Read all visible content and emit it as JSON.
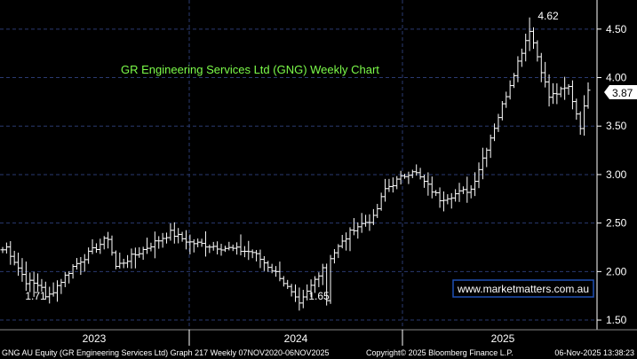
{
  "colors": {
    "background": "#000000",
    "title": "#7CFC4A",
    "grid": "#2a3a70",
    "bar": "#ffffff",
    "last_price_box": "#ffffff",
    "watermark_border": "#1e4fb4"
  },
  "chart_data": {
    "type": "ohlc",
    "title": "GR Engineering Services Ltd (GNG) Weekly Chart",
    "ylim": [
      1.4,
      4.8
    ],
    "y_ticks": [
      "1.50",
      "2.00",
      "2.50",
      "3.00",
      "3.50",
      "4.00",
      "4.50"
    ],
    "x_ticks": [
      "2023",
      "2024",
      "2025"
    ],
    "grid": true,
    "last_price": "3.87",
    "annotations": [
      {
        "text": "4.62",
        "value": 4.62
      },
      {
        "text": "1.71",
        "value": 1.71
      },
      {
        "text": "1.65",
        "value": 1.65
      }
    ],
    "series": [
      {
        "segments": [
          {
            "points": 2,
            "start": 2.2,
            "end": 2.25
          },
          {
            "points": 5,
            "start": 2.25,
            "end": 1.9
          },
          {
            "points": 4,
            "start": 1.9,
            "end": 1.85
          },
          {
            "points": 1,
            "start": 1.85,
            "end": 1.71
          },
          {
            "points": 7,
            "start": 1.71,
            "end": 2.05
          },
          {
            "points": 9,
            "start": 2.05,
            "end": 2.35
          },
          {
            "points": 2,
            "start": 2.35,
            "end": 2.05
          },
          {
            "points": 14,
            "start": 2.05,
            "end": 2.4
          },
          {
            "points": 5,
            "start": 2.4,
            "end": 2.3
          },
          {
            "points": 16,
            "start": 2.3,
            "end": 2.2
          },
          {
            "points": 7,
            "start": 2.2,
            "end": 1.95
          },
          {
            "points": 5,
            "start": 1.95,
            "end": 1.65
          },
          {
            "points": 6,
            "start": 1.65,
            "end": 2.05
          },
          {
            "points": 8,
            "start": 2.05,
            "end": 2.45
          },
          {
            "points": 5,
            "start": 2.45,
            "end": 2.55
          },
          {
            "points": 3,
            "start": 2.55,
            "end": 2.85
          },
          {
            "points": 7,
            "start": 2.85,
            "end": 3.05
          },
          {
            "points": 7,
            "start": 3.05,
            "end": 2.75
          },
          {
            "points": 8,
            "start": 2.75,
            "end": 2.85
          },
          {
            "points": 7,
            "start": 2.85,
            "end": 3.6
          },
          {
            "points": 8,
            "start": 3.6,
            "end": 4.5
          },
          {
            "points": 5,
            "start": 4.5,
            "end": 3.8
          },
          {
            "points": 5,
            "start": 3.8,
            "end": 3.9
          },
          {
            "points": 3,
            "start": 3.9,
            "end": 3.5
          },
          {
            "points": 2,
            "start": 3.5,
            "end": 3.87
          }
        ]
      }
    ]
  },
  "watermark": "www.marketmatters.com.au",
  "footer": {
    "left": "GNG AU Equity (GR Engineering Services Ltd) Graph 217 Weekly 07NOV2020-06NOV2025",
    "middle": "Copyright© 2025 Bloomberg Finance L.P.",
    "right": "06-Nov-2025 13:38:23"
  }
}
